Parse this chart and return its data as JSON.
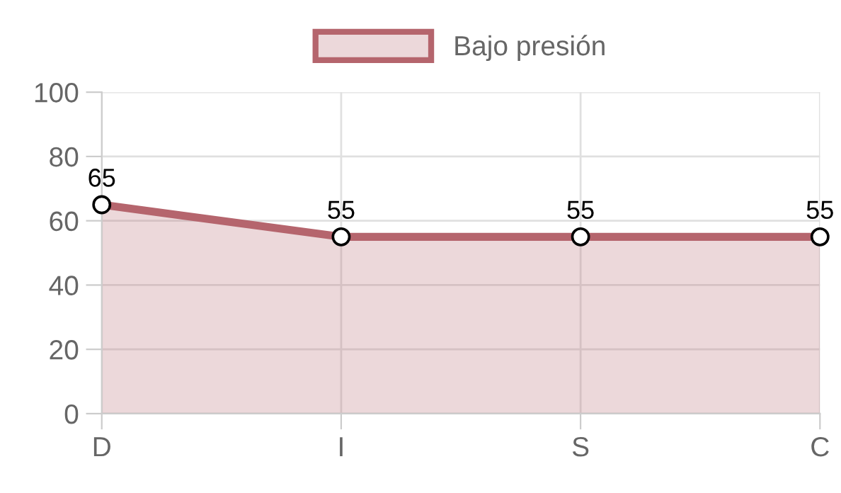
{
  "chart_data": {
    "type": "area",
    "categories": [
      "D",
      "I",
      "S",
      "C"
    ],
    "series": [
      {
        "name": "Bajo presión",
        "color": "#b5656d",
        "values": [
          65,
          55,
          55,
          55
        ]
      }
    ],
    "ylim": [
      0,
      100
    ],
    "yticks": [
      0,
      20,
      40,
      60,
      80,
      100
    ],
    "grid": true,
    "legend": "top",
    "marker": "circle",
    "data_labels": true
  }
}
